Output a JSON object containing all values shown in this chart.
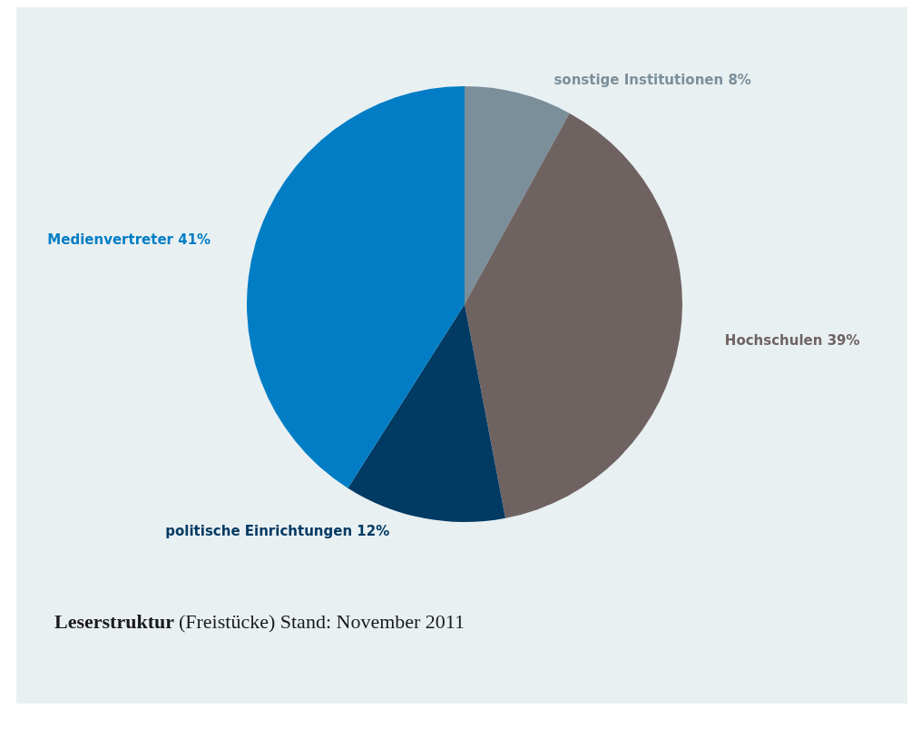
{
  "chart_data": {
    "type": "pie",
    "title": "Leserstruktur",
    "subtitle": "(Freistücke) Stand: November 2011",
    "categories": [
      "sonstige Institutionen",
      "Hochschulen",
      "politische Einrichtungen",
      "Medienvertreter"
    ],
    "values": [
      8,
      39,
      12,
      41
    ],
    "value_labels": [
      "8%",
      "39%",
      "12%",
      "41%"
    ],
    "colors": [
      "#7b8f9b",
      "#6f6362",
      "#013a63",
      "#007dc5"
    ],
    "legend": false
  }
}
